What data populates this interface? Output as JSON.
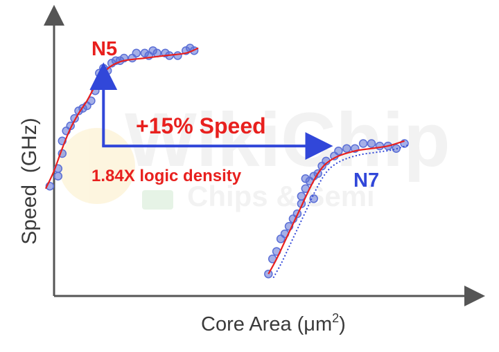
{
  "chart_data": {
    "type": "scatter",
    "title": "",
    "xlabel": "Core Area (μm²)",
    "xlabel_main": "Core Area (μm",
    "xlabel_sup": "2",
    "xlabel_close": ")",
    "ylabel": "Speed  (GHz)",
    "axis_tick_labels": false,
    "xlim": [
      0,
      100
    ],
    "ylim": [
      0,
      100
    ],
    "series": [
      {
        "name": "N5",
        "color": "#e8201e",
        "marker_color": "#5b6fd6",
        "points": [
          [
            2,
            41
          ],
          [
            4,
            45
          ],
          [
            4,
            48
          ],
          [
            5,
            54
          ],
          [
            5,
            59
          ],
          [
            6,
            63
          ],
          [
            7,
            65
          ],
          [
            8,
            68
          ],
          [
            9,
            71
          ],
          [
            10,
            72
          ],
          [
            11,
            73
          ],
          [
            12,
            75
          ],
          [
            13,
            79
          ],
          [
            14,
            83
          ],
          [
            14,
            86
          ],
          [
            15,
            88
          ],
          [
            16,
            87
          ],
          [
            17,
            90
          ],
          [
            18,
            91
          ],
          [
            19,
            91
          ],
          [
            20,
            92
          ],
          [
            22,
            92
          ],
          [
            23,
            94
          ],
          [
            25,
            94
          ],
          [
            26,
            93
          ],
          [
            27,
            95
          ],
          [
            28,
            94
          ],
          [
            30,
            94
          ],
          [
            31,
            93
          ],
          [
            33,
            93
          ],
          [
            35,
            95
          ],
          [
            36,
            96
          ],
          [
            37,
            95
          ]
        ],
        "fit": [
          [
            1,
            40
          ],
          [
            3,
            47
          ],
          [
            5,
            56
          ],
          [
            7,
            64
          ],
          [
            9,
            70
          ],
          [
            11,
            75
          ],
          [
            13,
            81
          ],
          [
            15,
            86
          ],
          [
            17,
            89
          ],
          [
            20,
            91
          ],
          [
            25,
            92
          ],
          [
            30,
            93
          ],
          [
            35,
            94
          ],
          [
            38,
            96
          ]
        ]
      },
      {
        "name": "N7",
        "color": "#3147d9",
        "marker_color": "#5b6fd6",
        "points": [
          [
            55,
            6
          ],
          [
            56,
            12
          ],
          [
            57,
            15
          ],
          [
            58,
            20
          ],
          [
            59,
            22
          ],
          [
            60,
            25
          ],
          [
            61,
            28
          ],
          [
            62,
            30
          ],
          [
            63,
            34
          ],
          [
            63,
            37
          ],
          [
            64,
            40
          ],
          [
            64,
            44
          ],
          [
            65,
            43
          ],
          [
            66,
            45
          ],
          [
            66,
            36
          ],
          [
            67,
            46
          ],
          [
            68,
            49
          ],
          [
            69,
            51
          ],
          [
            71,
            53
          ],
          [
            72,
            55
          ],
          [
            74,
            56
          ],
          [
            76,
            56
          ],
          [
            78,
            58
          ],
          [
            80,
            58
          ],
          [
            82,
            57
          ],
          [
            84,
            57
          ],
          [
            86,
            56
          ],
          [
            88,
            58
          ]
        ],
        "fit": [
          [
            55,
            6
          ],
          [
            57,
            12
          ],
          [
            59,
            19
          ],
          [
            61,
            26
          ],
          [
            63,
            33
          ],
          [
            65,
            40
          ],
          [
            67,
            46
          ],
          [
            69,
            50
          ],
          [
            72,
            53
          ],
          [
            76,
            55
          ],
          [
            80,
            56
          ],
          [
            84,
            57
          ],
          [
            88,
            59
          ]
        ]
      }
    ],
    "annotations": [
      {
        "text": "+15% Speed",
        "color": "#e8201e"
      },
      {
        "text": "1.84X logic density",
        "color": "#e8201e"
      }
    ],
    "arrow": {
      "from_value": [
        15,
        87
      ],
      "corner_value": [
        15,
        57
      ],
      "to_value": [
        69,
        57
      ],
      "color": "#3147d9"
    }
  },
  "watermark": {
    "text_main": "WikiChip",
    "text_sub": "Chips & Semi"
  }
}
